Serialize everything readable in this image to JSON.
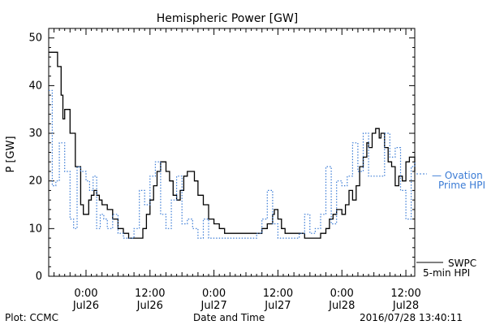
{
  "chart_data": {
    "type": "line",
    "title": "Hemispheric Power [GW]",
    "ylabel": "P [GW]",
    "xlabel": "Date and Time",
    "ylim": [
      0,
      52
    ],
    "xlim": [
      "2016-07-25 17:00",
      "2016-07-28 13:40"
    ],
    "grid": false,
    "y_ticks": [
      0,
      10,
      20,
      30,
      40,
      50
    ],
    "x_ticks": [
      {
        "time": "2016-07-26 00:00",
        "line1": "0:00",
        "line2": "Jul26"
      },
      {
        "time": "2016-07-26 12:00",
        "line1": "12:00",
        "line2": "Jul26"
      },
      {
        "time": "2016-07-27 00:00",
        "line1": "0:00",
        "line2": "Jul27"
      },
      {
        "time": "2016-07-27 12:00",
        "line1": "12:00",
        "line2": "Jul27"
      },
      {
        "time": "2016-07-28 00:00",
        "line1": "0:00",
        "line2": "Jul28"
      },
      {
        "time": "2016-07-28 12:00",
        "line1": "12:00",
        "line2": "Jul28"
      }
    ],
    "legend_placement": "right",
    "series": [
      {
        "name": "SWPC 5-min HPI",
        "legend_lines": [
          "SWPC",
          "5-min HPI"
        ],
        "color": "#000000",
        "style": "solid",
        "points": [
          [
            "2016-07-25 17:00",
            47
          ],
          [
            "2016-07-25 18:00",
            47
          ],
          [
            "2016-07-25 18:40",
            44
          ],
          [
            "2016-07-25 19:20",
            38
          ],
          [
            "2016-07-25 19:40",
            33
          ],
          [
            "2016-07-25 20:00",
            35
          ],
          [
            "2016-07-25 20:30",
            35
          ],
          [
            "2016-07-25 21:00",
            30
          ],
          [
            "2016-07-25 22:00",
            23
          ],
          [
            "2016-07-25 23:00",
            15
          ],
          [
            "2016-07-25 23:30",
            13
          ],
          [
            "2016-07-26 00:30",
            16
          ],
          [
            "2016-07-26 01:00",
            17
          ],
          [
            "2016-07-26 01:30",
            18
          ],
          [
            "2016-07-26 02:00",
            17
          ],
          [
            "2016-07-26 02:30",
            16
          ],
          [
            "2016-07-26 03:00",
            15
          ],
          [
            "2016-07-26 04:00",
            14
          ],
          [
            "2016-07-26 05:00",
            12
          ],
          [
            "2016-07-26 06:00",
            10
          ],
          [
            "2016-07-26 07:00",
            9
          ],
          [
            "2016-07-26 08:00",
            8
          ],
          [
            "2016-07-26 09:00",
            8
          ],
          [
            "2016-07-26 10:00",
            8
          ],
          [
            "2016-07-26 10:40",
            10
          ],
          [
            "2016-07-26 11:20",
            13
          ],
          [
            "2016-07-26 12:00",
            16
          ],
          [
            "2016-07-26 12:40",
            19
          ],
          [
            "2016-07-26 13:20",
            22
          ],
          [
            "2016-07-26 14:00",
            24
          ],
          [
            "2016-07-26 14:40",
            24
          ],
          [
            "2016-07-26 15:00",
            22
          ],
          [
            "2016-07-26 15:40",
            20
          ],
          [
            "2016-07-26 16:20",
            17
          ],
          [
            "2016-07-26 17:00",
            16
          ],
          [
            "2016-07-26 17:40",
            18
          ],
          [
            "2016-07-26 18:20",
            21
          ],
          [
            "2016-07-26 19:00",
            22
          ],
          [
            "2016-07-26 19:40",
            22
          ],
          [
            "2016-07-26 20:20",
            20
          ],
          [
            "2016-07-26 21:00",
            17
          ],
          [
            "2016-07-26 22:00",
            15
          ],
          [
            "2016-07-26 23:00",
            12
          ],
          [
            "2016-07-27 00:00",
            11
          ],
          [
            "2016-07-27 01:00",
            10
          ],
          [
            "2016-07-27 02:00",
            9
          ],
          [
            "2016-07-27 04:00",
            9
          ],
          [
            "2016-07-27 06:00",
            9
          ],
          [
            "2016-07-27 08:00",
            9
          ],
          [
            "2016-07-27 09:00",
            10
          ],
          [
            "2016-07-27 10:00",
            11
          ],
          [
            "2016-07-27 11:00",
            13
          ],
          [
            "2016-07-27 11:20",
            14
          ],
          [
            "2016-07-27 12:00",
            12
          ],
          [
            "2016-07-27 12:40",
            10
          ],
          [
            "2016-07-27 13:20",
            9
          ],
          [
            "2016-07-27 15:00",
            9
          ],
          [
            "2016-07-27 17:00",
            8
          ],
          [
            "2016-07-27 19:00",
            8
          ],
          [
            "2016-07-27 20:00",
            9
          ],
          [
            "2016-07-27 21:00",
            10
          ],
          [
            "2016-07-27 21:40",
            12
          ],
          [
            "2016-07-27 22:20",
            13
          ],
          [
            "2016-07-27 23:00",
            14
          ],
          [
            "2016-07-28 00:00",
            13
          ],
          [
            "2016-07-28 00:40",
            15
          ],
          [
            "2016-07-28 01:20",
            18
          ],
          [
            "2016-07-28 02:00",
            16
          ],
          [
            "2016-07-28 02:40",
            19
          ],
          [
            "2016-07-28 03:20",
            23
          ],
          [
            "2016-07-28 04:00",
            25
          ],
          [
            "2016-07-28 04:40",
            28
          ],
          [
            "2016-07-28 05:00",
            27
          ],
          [
            "2016-07-28 05:40",
            30
          ],
          [
            "2016-07-28 06:20",
            31
          ],
          [
            "2016-07-28 07:00",
            29
          ],
          [
            "2016-07-28 07:20",
            30
          ],
          [
            "2016-07-28 08:00",
            27
          ],
          [
            "2016-07-28 08:40",
            24
          ],
          [
            "2016-07-28 09:20",
            23
          ],
          [
            "2016-07-28 10:00",
            19
          ],
          [
            "2016-07-28 10:40",
            21
          ],
          [
            "2016-07-28 11:20",
            20
          ],
          [
            "2016-07-28 12:00",
            24
          ],
          [
            "2016-07-28 12:40",
            25
          ],
          [
            "2016-07-28 13:40",
            22
          ]
        ]
      },
      {
        "name": "Ovation Prime HPI",
        "legend_lines": [
          "— Ovation",
          "Prime HPI"
        ],
        "color": "#3a7bd5",
        "style": "dotted",
        "points": [
          [
            "2016-07-25 17:00",
            39
          ],
          [
            "2016-07-25 17:40",
            19
          ],
          [
            "2016-07-25 18:20",
            20
          ],
          [
            "2016-07-25 19:00",
            28
          ],
          [
            "2016-07-25 20:00",
            22
          ],
          [
            "2016-07-25 21:00",
            12
          ],
          [
            "2016-07-25 21:40",
            10
          ],
          [
            "2016-07-25 22:20",
            23
          ],
          [
            "2016-07-25 23:00",
            22
          ],
          [
            "2016-07-26 00:00",
            20
          ],
          [
            "2016-07-26 00:40",
            18
          ],
          [
            "2016-07-26 01:20",
            21
          ],
          [
            "2016-07-26 02:00",
            10
          ],
          [
            "2016-07-26 02:40",
            13
          ],
          [
            "2016-07-26 03:20",
            12
          ],
          [
            "2016-07-26 04:00",
            10
          ],
          [
            "2016-07-26 05:00",
            13
          ],
          [
            "2016-07-26 06:00",
            9
          ],
          [
            "2016-07-26 07:00",
            8
          ],
          [
            "2016-07-26 08:00",
            8
          ],
          [
            "2016-07-26 09:00",
            10
          ],
          [
            "2016-07-26 10:00",
            18
          ],
          [
            "2016-07-26 11:00",
            15
          ],
          [
            "2016-07-26 12:00",
            21
          ],
          [
            "2016-07-26 13:00",
            24
          ],
          [
            "2016-07-26 14:00",
            13
          ],
          [
            "2016-07-26 15:00",
            10
          ],
          [
            "2016-07-26 16:00",
            16
          ],
          [
            "2016-07-26 17:00",
            21
          ],
          [
            "2016-07-26 18:00",
            11
          ],
          [
            "2016-07-26 19:00",
            12
          ],
          [
            "2016-07-26 20:00",
            10
          ],
          [
            "2016-07-26 21:00",
            8
          ],
          [
            "2016-07-26 22:00",
            12
          ],
          [
            "2016-07-26 23:00",
            8
          ],
          [
            "2016-07-27 02:00",
            8
          ],
          [
            "2016-07-27 04:00",
            8
          ],
          [
            "2016-07-27 06:00",
            8
          ],
          [
            "2016-07-27 08:00",
            9
          ],
          [
            "2016-07-27 09:00",
            12
          ],
          [
            "2016-07-27 10:00",
            18
          ],
          [
            "2016-07-27 11:00",
            11
          ],
          [
            "2016-07-27 12:00",
            8
          ],
          [
            "2016-07-27 14:00",
            8
          ],
          [
            "2016-07-27 16:00",
            9
          ],
          [
            "2016-07-27 17:00",
            13
          ],
          [
            "2016-07-27 18:00",
            9
          ],
          [
            "2016-07-27 19:00",
            10
          ],
          [
            "2016-07-27 20:00",
            13
          ],
          [
            "2016-07-27 21:00",
            23
          ],
          [
            "2016-07-27 22:00",
            11
          ],
          [
            "2016-07-27 23:00",
            20
          ],
          [
            "2016-07-28 00:00",
            19
          ],
          [
            "2016-07-28 01:00",
            21
          ],
          [
            "2016-07-28 02:00",
            28
          ],
          [
            "2016-07-28 03:00",
            22
          ],
          [
            "2016-07-28 04:00",
            30
          ],
          [
            "2016-07-28 05:00",
            21
          ],
          [
            "2016-07-28 07:00",
            21
          ],
          [
            "2016-07-28 08:00",
            30
          ],
          [
            "2016-07-28 09:00",
            25
          ],
          [
            "2016-07-28 10:00",
            27
          ],
          [
            "2016-07-28 11:00",
            18
          ],
          [
            "2016-07-28 12:00",
            12
          ],
          [
            "2016-07-28 13:00",
            23
          ],
          [
            "2016-07-28 13:40",
            24
          ]
        ]
      }
    ]
  },
  "footer": {
    "left": "Plot: CCMC",
    "center": "Date and Time",
    "right": "2016/07/28 13:40:11"
  }
}
